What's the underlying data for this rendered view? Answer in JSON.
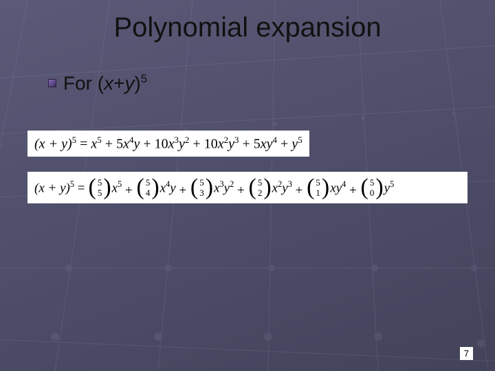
{
  "slide": {
    "title": "Polynomial expansion",
    "bullet_prefix": "For (",
    "bullet_var1": "x",
    "bullet_plus": "+",
    "bullet_var2": "y",
    "bullet_close": ")",
    "bullet_exp": "5",
    "page_number": "7",
    "background": {
      "gradient_start": "#5a5a78",
      "gradient_mid": "#4e4e6a",
      "gradient_end": "#42425a",
      "grid_color": "#8888a8",
      "grid_opacity": 0.15
    },
    "title_color": "#111111",
    "body_text_color": "#111111",
    "bullet_fill_a": "#8a6ec0",
    "bullet_fill_b": "#3a2d5a"
  },
  "eq1": {
    "lhs_open": "(",
    "lhs_x": "x",
    "lhs_plus": " + ",
    "lhs_y": "y",
    "lhs_close": ")",
    "lhs_exp": "5",
    "eq": " = ",
    "t1": "x",
    "t1e": "5",
    "p1": " + 5",
    "t2a": "x",
    "t2ae": "4",
    "t2b": "y",
    "p2": " + 10",
    "t3a": "x",
    "t3ae": "3",
    "t3b": "y",
    "t3be": "2",
    "p3": " + 10",
    "t4a": "x",
    "t4ae": "2",
    "t4b": "y",
    "t4be": "3",
    "p4": " + 5",
    "t5a": "x",
    "t5b": "y",
    "t5be": "4",
    "p5": " + ",
    "t6": "y",
    "t6e": "5"
  },
  "eq2": {
    "lhs_open": "(",
    "lhs_x": "x",
    "lhs_plus": " + ",
    "lhs_y": "y",
    "lhs_close": ")",
    "lhs_exp": "5",
    "eq": " = ",
    "plus": " + ",
    "terms": [
      {
        "n": "5",
        "k": "5",
        "xa": "x",
        "xe": "5",
        "ya": "",
        "ye": ""
      },
      {
        "n": "5",
        "k": "4",
        "xa": "x",
        "xe": "4",
        "ya": "y",
        "ye": ""
      },
      {
        "n": "5",
        "k": "3",
        "xa": "x",
        "xe": "3",
        "ya": "y",
        "ye": "2"
      },
      {
        "n": "5",
        "k": "2",
        "xa": "x",
        "xe": "2",
        "ya": "y",
        "ye": "3"
      },
      {
        "n": "5",
        "k": "1",
        "xa": "x",
        "xe": "",
        "ya": "y",
        "ye": "4"
      },
      {
        "n": "5",
        "k": "0",
        "xa": "",
        "xe": "",
        "ya": "y",
        "ye": "5"
      }
    ]
  }
}
